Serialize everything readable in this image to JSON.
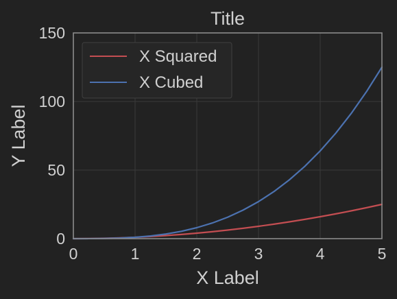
{
  "chart_data": {
    "type": "line",
    "title": "Title",
    "xlabel": "X Label",
    "ylabel": "Y Label",
    "xlim": [
      0,
      5
    ],
    "ylim": [
      0,
      150
    ],
    "xticks": [
      "0",
      "1",
      "2",
      "3",
      "4",
      "5"
    ],
    "yticks": [
      "0",
      "50",
      "100",
      "150"
    ],
    "grid": true,
    "legend_position": "top-left",
    "x": [
      0,
      0.25,
      0.5,
      0.75,
      1,
      1.25,
      1.5,
      1.75,
      2,
      2.25,
      2.5,
      2.75,
      3,
      3.25,
      3.5,
      3.75,
      4,
      4.25,
      4.5,
      4.75,
      5
    ],
    "series": [
      {
        "name": "X Squared",
        "color": "#c44e52",
        "values": [
          0,
          0.06,
          0.25,
          0.56,
          1,
          1.56,
          2.25,
          3.06,
          4,
          5.06,
          6.25,
          7.56,
          9,
          10.56,
          12.25,
          14.06,
          16,
          18.06,
          20.25,
          22.56,
          25
        ]
      },
      {
        "name": "X Cubed",
        "color": "#4c72b0",
        "values": [
          0,
          0.02,
          0.13,
          0.42,
          1,
          1.95,
          3.38,
          5.36,
          8,
          11.39,
          15.63,
          20.8,
          27,
          34.33,
          42.88,
          52.73,
          64,
          76.77,
          91.13,
          107.17,
          125
        ]
      }
    ]
  },
  "colors": {
    "background": "#222222",
    "axes_edge": "#8c8c8c",
    "grid": "#3a3a3a",
    "text": "#d0d0d0"
  }
}
